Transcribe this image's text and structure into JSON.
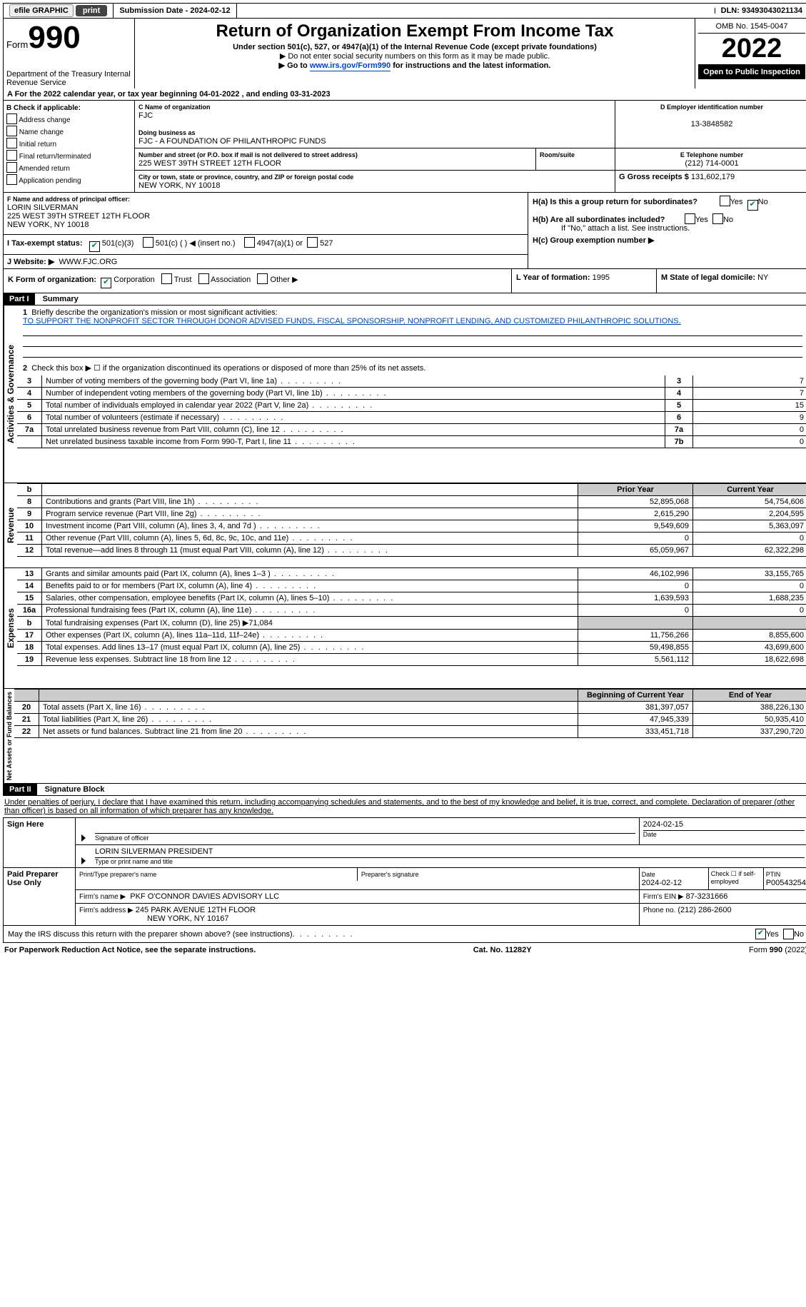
{
  "top": {
    "efile": "efile GRAPHIC",
    "print": "print",
    "submission": "Submission Date - 2024-02-12",
    "dln": "DLN: 93493043021134"
  },
  "header": {
    "form_word": "Form",
    "form_num": "990",
    "dept": "Department of the Treasury Internal Revenue Service",
    "title": "Return of Organization Exempt From Income Tax",
    "sub1": "Under section 501(c), 527, or 4947(a)(1) of the Internal Revenue Code (except private foundations)",
    "sub2": "▶ Do not enter social security numbers on this form as it may be made public.",
    "sub3_a": "▶ Go to ",
    "sub3_link": "www.irs.gov/Form990",
    "sub3_b": " for instructions and the latest information.",
    "omb": "OMB No. 1545-0047",
    "year": "2022",
    "otp": "Open to Public Inspection"
  },
  "A": {
    "line": "A For the 2022 calendar year, or tax year beginning 04-01-2022    , and ending 03-31-2023"
  },
  "B": {
    "hdr": "B Check if applicable:",
    "o1": "Address change",
    "o2": "Name change",
    "o3": "Initial return",
    "o4": "Final return/terminated",
    "o5": "Amended return",
    "o6": "Application pending"
  },
  "C": {
    "name_lbl": "C Name of organization",
    "name": "FJC",
    "dba_lbl": "Doing business as",
    "dba": "FJC - A FOUNDATION OF PHILANTHROPIC FUNDS",
    "street_lbl": "Number and street (or P.O. box if mail is not delivered to street address)",
    "street": "225 WEST 39TH STREET 12TH FLOOR",
    "room_lbl": "Room/suite",
    "city_lbl": "City or town, state or province, country, and ZIP or foreign postal code",
    "city": "NEW YORK, NY  10018"
  },
  "D": {
    "ein_lbl": "D Employer identification number",
    "ein": "13-3848582",
    "tel_lbl": "E Telephone number",
    "tel": "(212) 714-0001",
    "gross_lbl": "G Gross receipts $",
    "gross": "131,602,179"
  },
  "F": {
    "lbl": "F  Name and address of principal officer:",
    "name": "LORIN SILVERMAN",
    "addr1": "225 WEST 39TH STREET 12TH FLOOR",
    "addr2": "NEW YORK, NY  10018"
  },
  "H": {
    "a": "H(a)  Is this a group return for subordinates?",
    "b": "H(b)  Are all subordinates included?",
    "b2": "If \"No,\" attach a list. See instructions.",
    "c": "H(c)  Group exemption number ▶",
    "yes": "Yes",
    "no": "No"
  },
  "I": {
    "lbl": "I   Tax-exempt status:",
    "o1": "501(c)(3)",
    "o2": "501(c) (   ) ◀ (insert no.)",
    "o3": "4947(a)(1) or",
    "o4": "527"
  },
  "J": {
    "lbl": "J   Website: ▶",
    "val": "WWW.FJC.ORG"
  },
  "K": {
    "lbl": "K Form of organization:",
    "o1": "Corporation",
    "o2": "Trust",
    "o3": "Association",
    "o4": "Other ▶"
  },
  "L": {
    "lbl": "L Year of formation:",
    "val": "1995"
  },
  "M": {
    "lbl": "M State of legal domicile:",
    "val": "NY"
  },
  "partI": {
    "hdr": "Part I",
    "title": "Summary",
    "line1_lbl": "Briefly describe the organization's mission or most significant activities:",
    "line1_val": "TO SUPPORT THE NONPROFIT SECTOR THROUGH DONOR ADVISED FUNDS, FISCAL SPONSORSHIP, NONPROFIT LENDING, AND CUSTOMIZED PHILANTHROPIC SOLUTIONS.",
    "line2": "Check this box ▶ ☐  if the organization discontinued its operations or disposed of more than 25% of its net assets.",
    "sides": {
      "ag": "Activities & Governance",
      "rev": "Revenue",
      "exp": "Expenses",
      "net": "Net Assets or Fund Balances"
    },
    "cols": {
      "prior": "Prior Year",
      "current": "Current Year",
      "boy": "Beginning of Current Year",
      "eoy": "End of Year"
    },
    "rows_gov": [
      {
        "n": "3",
        "d": "Number of voting members of the governing body (Part VI, line 1a)",
        "b": "3",
        "v": "7"
      },
      {
        "n": "4",
        "d": "Number of independent voting members of the governing body (Part VI, line 1b)",
        "b": "4",
        "v": "7"
      },
      {
        "n": "5",
        "d": "Total number of individuals employed in calendar year 2022 (Part V, line 2a)",
        "b": "5",
        "v": "15"
      },
      {
        "n": "6",
        "d": "Total number of volunteers (estimate if necessary)",
        "b": "6",
        "v": "9"
      },
      {
        "n": "7a",
        "d": "Total unrelated business revenue from Part VIII, column (C), line 12",
        "b": "7a",
        "v": "0"
      },
      {
        "n": "",
        "d": "Net unrelated business taxable income from Form 990-T, Part I, line 11",
        "b": "7b",
        "v": "0"
      }
    ],
    "rows_rev": [
      {
        "n": "8",
        "d": "Contributions and grants (Part VIII, line 1h)",
        "p": "52,895,068",
        "c": "54,754,606"
      },
      {
        "n": "9",
        "d": "Program service revenue (Part VIII, line 2g)",
        "p": "2,615,290",
        "c": "2,204,595"
      },
      {
        "n": "10",
        "d": "Investment income (Part VIII, column (A), lines 3, 4, and 7d )",
        "p": "9,549,609",
        "c": "5,363,097"
      },
      {
        "n": "11",
        "d": "Other revenue (Part VIII, column (A), lines 5, 6d, 8c, 9c, 10c, and 11e)",
        "p": "0",
        "c": "0"
      },
      {
        "n": "12",
        "d": "Total revenue—add lines 8 through 11 (must equal Part VIII, column (A), line 12)",
        "p": "65,059,967",
        "c": "62,322,298"
      }
    ],
    "rows_exp": [
      {
        "n": "13",
        "d": "Grants and similar amounts paid (Part IX, column (A), lines 1–3 )",
        "p": "46,102,996",
        "c": "33,155,765"
      },
      {
        "n": "14",
        "d": "Benefits paid to or for members (Part IX, column (A), line 4)",
        "p": "0",
        "c": "0"
      },
      {
        "n": "15",
        "d": "Salaries, other compensation, employee benefits (Part IX, column (A), lines 5–10)",
        "p": "1,639,593",
        "c": "1,688,235"
      },
      {
        "n": "16a",
        "d": "Professional fundraising fees (Part IX, column (A), line 11e)",
        "p": "0",
        "c": "0"
      },
      {
        "n": "b",
        "d": "Total fundraising expenses (Part IX, column (D), line 25) ▶71,084",
        "p": "",
        "c": "",
        "shade": true
      },
      {
        "n": "17",
        "d": "Other expenses (Part IX, column (A), lines 11a–11d, 11f–24e)",
        "p": "11,756,266",
        "c": "8,855,600"
      },
      {
        "n": "18",
        "d": "Total expenses. Add lines 13–17 (must equal Part IX, column (A), line 25)",
        "p": "59,498,855",
        "c": "43,699,600"
      },
      {
        "n": "19",
        "d": "Revenue less expenses. Subtract line 18 from line 12",
        "p": "5,561,112",
        "c": "18,622,698"
      }
    ],
    "rows_net": [
      {
        "n": "20",
        "d": "Total assets (Part X, line 16)",
        "p": "381,397,057",
        "c": "388,226,130"
      },
      {
        "n": "21",
        "d": "Total liabilities (Part X, line 26)",
        "p": "47,945,339",
        "c": "50,935,410"
      },
      {
        "n": "22",
        "d": "Net assets or fund balances. Subtract line 21 from line 20",
        "p": "333,451,718",
        "c": "337,290,720"
      }
    ]
  },
  "partII": {
    "hdr": "Part II",
    "title": "Signature Block",
    "decl": "Under penalties of perjury, I declare that I have examined this return, including accompanying schedules and statements, and to the best of my knowledge and belief, it is true, correct, and complete. Declaration of preparer (other than officer) is based on all information of which preparer has any knowledge.",
    "sign_here": "Sign Here",
    "sig_officer": "Signature of officer",
    "sig_date": "2024-02-15",
    "date_lbl": "Date",
    "officer_name": "LORIN SILVERMAN  PRESIDENT",
    "type_name": "Type or print name and title",
    "paid": "Paid Preparer Use Only",
    "prep_name_lbl": "Print/Type preparer's name",
    "prep_sig_lbl": "Preparer's signature",
    "prep_date_lbl": "Date",
    "prep_date": "2024-02-12",
    "check_self": "Check ☐ if self-employed",
    "ptin_lbl": "PTIN",
    "ptin": "P00543254",
    "firm_name_lbl": "Firm's name    ▶",
    "firm_name": "PKF O'CONNOR DAVIES ADVISORY LLC",
    "firm_ein_lbl": "Firm's EIN ▶",
    "firm_ein": "87-3231666",
    "firm_addr_lbl": "Firm's address ▶",
    "firm_addr1": "245 PARK AVENUE 12TH FLOOR",
    "firm_addr2": "NEW YORK, NY  10167",
    "phone_lbl": "Phone no.",
    "phone": "(212) 286-2600",
    "discuss": "May the IRS discuss this return with the preparer shown above? (see instructions)"
  },
  "footer": {
    "pra": "For Paperwork Reduction Act Notice, see the separate instructions.",
    "cat": "Cat. No. 11282Y",
    "form": "Form 990 (2022)"
  }
}
